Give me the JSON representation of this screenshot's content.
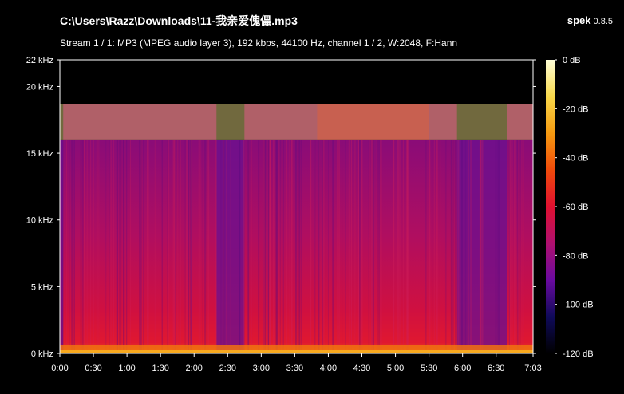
{
  "window": {
    "file_title": "C:\\Users\\Razz\\Downloads\\11-我亲爱傀儡.mp3",
    "app_name": "spek",
    "app_version": "0.8.5"
  },
  "stream_info": "Stream 1 / 1: MP3 (MPEG audio layer 3), 192 kbps, 44100 Hz, channel 1 / 2, W:2048, F:Hann",
  "spectrogram": {
    "freq_ticks": [
      "22 kHz",
      "20 kHz",
      "15 kHz",
      "10 kHz",
      "5 kHz",
      "0 kHz"
    ],
    "freq_values_khz": [
      22,
      20,
      15,
      10,
      5,
      0
    ],
    "time_ticks": [
      "0:00",
      "0:30",
      "1:00",
      "1:30",
      "2:00",
      "2:30",
      "3:00",
      "3:30",
      "4:00",
      "4:30",
      "5:00",
      "5:30",
      "6:00",
      "6:30",
      "7:03"
    ],
    "time_values_s": [
      0,
      30,
      60,
      90,
      120,
      150,
      180,
      210,
      240,
      270,
      300,
      330,
      360,
      390,
      423
    ],
    "duration_s": 423,
    "max_freq_khz": 22,
    "lowpass_cutoff_khz": 16,
    "upper_band_top_khz": 18.7,
    "quiet_sections_s": [
      [
        0,
        3
      ],
      [
        140,
        165
      ],
      [
        355,
        400
      ]
    ]
  },
  "colorbar": {
    "ticks": [
      "0 dB",
      "-20 dB",
      "-40 dB",
      "-60 dB",
      "-80 dB",
      "-100 dB",
      "-120 dB"
    ],
    "values_db": [
      0,
      -20,
      -40,
      -60,
      -80,
      -100,
      -120
    ],
    "gradient": [
      "#000000",
      "#0f0a5a",
      "#6a0aa0",
      "#b0106f",
      "#e01030",
      "#f04a0a",
      "#f59a10",
      "#f8d84a",
      "#ffffd8"
    ]
  }
}
